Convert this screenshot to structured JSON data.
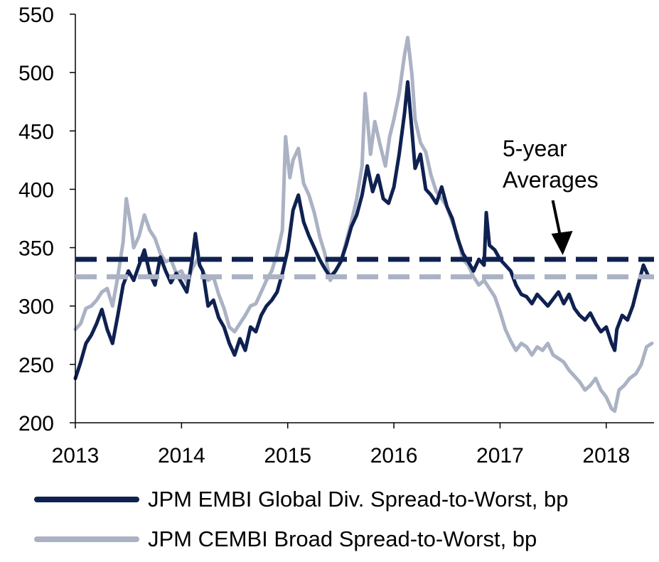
{
  "chart_data": {
    "type": "line",
    "xlabel": "",
    "ylabel": "",
    "xlim": [
      2013.0,
      2018.45
    ],
    "ylim": [
      200,
      550
    ],
    "y_ticks": [
      "200",
      "250",
      "300",
      "350",
      "400",
      "450",
      "500",
      "550"
    ],
    "x_ticks": [
      "2013",
      "2014",
      "2015",
      "2016",
      "2017",
      "2018"
    ],
    "grid": false,
    "legend_position": "bottom",
    "annotation": {
      "lines": [
        "5-year",
        "Averages"
      ],
      "points_to_x": 2017.55
    },
    "reference_lines": [
      {
        "series": "JPM EMBI Global Div. Spread-to-Worst, bp",
        "value": 340,
        "style": "dashed"
      },
      {
        "series": "JPM CEMBI Broad Spread-to-Worst, bp",
        "value": 325,
        "style": "dashed"
      }
    ],
    "series": [
      {
        "name": "JPM EMBI Global Div. Spread-to-Worst, bp",
        "color": "#0f2150",
        "points": [
          [
            2013.0,
            238
          ],
          [
            2013.05,
            252
          ],
          [
            2013.1,
            268
          ],
          [
            2013.15,
            275
          ],
          [
            2013.2,
            285
          ],
          [
            2013.25,
            297
          ],
          [
            2013.3,
            280
          ],
          [
            2013.35,
            268
          ],
          [
            2013.4,
            292
          ],
          [
            2013.45,
            318
          ],
          [
            2013.5,
            330
          ],
          [
            2013.55,
            322
          ],
          [
            2013.6,
            335
          ],
          [
            2013.65,
            348
          ],
          [
            2013.7,
            328
          ],
          [
            2013.75,
            318
          ],
          [
            2013.8,
            342
          ],
          [
            2013.85,
            330
          ],
          [
            2013.9,
            320
          ],
          [
            2013.95,
            328
          ],
          [
            2014.0,
            320
          ],
          [
            2014.05,
            312
          ],
          [
            2014.1,
            340
          ],
          [
            2014.13,
            362
          ],
          [
            2014.17,
            335
          ],
          [
            2014.2,
            330
          ],
          [
            2014.25,
            300
          ],
          [
            2014.3,
            305
          ],
          [
            2014.35,
            290
          ],
          [
            2014.4,
            282
          ],
          [
            2014.45,
            268
          ],
          [
            2014.5,
            258
          ],
          [
            2014.55,
            272
          ],
          [
            2014.6,
            262
          ],
          [
            2014.65,
            282
          ],
          [
            2014.7,
            278
          ],
          [
            2014.75,
            292
          ],
          [
            2014.8,
            300
          ],
          [
            2014.85,
            305
          ],
          [
            2014.9,
            312
          ],
          [
            2014.95,
            328
          ],
          [
            2015.0,
            348
          ],
          [
            2015.05,
            382
          ],
          [
            2015.1,
            395
          ],
          [
            2015.15,
            372
          ],
          [
            2015.2,
            360
          ],
          [
            2015.25,
            350
          ],
          [
            2015.3,
            340
          ],
          [
            2015.35,
            332
          ],
          [
            2015.4,
            325
          ],
          [
            2015.45,
            330
          ],
          [
            2015.5,
            338
          ],
          [
            2015.55,
            352
          ],
          [
            2015.6,
            368
          ],
          [
            2015.65,
            378
          ],
          [
            2015.7,
            395
          ],
          [
            2015.75,
            420
          ],
          [
            2015.8,
            398
          ],
          [
            2015.85,
            412
          ],
          [
            2015.9,
            392
          ],
          [
            2015.95,
            388
          ],
          [
            2016.0,
            402
          ],
          [
            2016.05,
            430
          ],
          [
            2016.1,
            465
          ],
          [
            2016.13,
            492
          ],
          [
            2016.17,
            450
          ],
          [
            2016.2,
            418
          ],
          [
            2016.25,
            430
          ],
          [
            2016.3,
            400
          ],
          [
            2016.35,
            395
          ],
          [
            2016.4,
            388
          ],
          [
            2016.45,
            402
          ],
          [
            2016.5,
            385
          ],
          [
            2016.55,
            375
          ],
          [
            2016.6,
            358
          ],
          [
            2016.65,
            345
          ],
          [
            2016.7,
            338
          ],
          [
            2016.75,
            330
          ],
          [
            2016.8,
            340
          ],
          [
            2016.85,
            335
          ],
          [
            2016.87,
            380
          ],
          [
            2016.9,
            352
          ],
          [
            2016.95,
            348
          ],
          [
            2017.0,
            340
          ],
          [
            2017.05,
            335
          ],
          [
            2017.1,
            330
          ],
          [
            2017.15,
            318
          ],
          [
            2017.2,
            310
          ],
          [
            2017.25,
            308
          ],
          [
            2017.3,
            302
          ],
          [
            2017.35,
            310
          ],
          [
            2017.4,
            305
          ],
          [
            2017.45,
            300
          ],
          [
            2017.5,
            306
          ],
          [
            2017.55,
            312
          ],
          [
            2017.6,
            302
          ],
          [
            2017.65,
            310
          ],
          [
            2017.7,
            298
          ],
          [
            2017.75,
            292
          ],
          [
            2017.8,
            288
          ],
          [
            2017.85,
            294
          ],
          [
            2017.9,
            285
          ],
          [
            2017.95,
            278
          ],
          [
            2018.0,
            282
          ],
          [
            2018.05,
            268
          ],
          [
            2018.08,
            262
          ],
          [
            2018.1,
            280
          ],
          [
            2018.15,
            292
          ],
          [
            2018.2,
            288
          ],
          [
            2018.25,
            300
          ],
          [
            2018.3,
            318
          ],
          [
            2018.35,
            335
          ],
          [
            2018.4,
            325
          ]
        ]
      },
      {
        "name": "JPM CEMBI Broad Spread-to-Worst, bp",
        "color": "#aab2c4",
        "points": [
          [
            2013.0,
            280
          ],
          [
            2013.05,
            285
          ],
          [
            2013.1,
            298
          ],
          [
            2013.15,
            300
          ],
          [
            2013.2,
            305
          ],
          [
            2013.25,
            312
          ],
          [
            2013.3,
            315
          ],
          [
            2013.35,
            300
          ],
          [
            2013.4,
            325
          ],
          [
            2013.45,
            355
          ],
          [
            2013.48,
            392
          ],
          [
            2013.52,
            370
          ],
          [
            2013.55,
            350
          ],
          [
            2013.6,
            360
          ],
          [
            2013.65,
            378
          ],
          [
            2013.7,
            365
          ],
          [
            2013.75,
            358
          ],
          [
            2013.8,
            345
          ],
          [
            2013.85,
            338
          ],
          [
            2013.9,
            340
          ],
          [
            2013.95,
            328
          ],
          [
            2014.0,
            330
          ],
          [
            2014.05,
            320
          ],
          [
            2014.1,
            332
          ],
          [
            2014.15,
            340
          ],
          [
            2014.2,
            330
          ],
          [
            2014.25,
            322
          ],
          [
            2014.3,
            325
          ],
          [
            2014.35,
            310
          ],
          [
            2014.4,
            298
          ],
          [
            2014.45,
            282
          ],
          [
            2014.5,
            278
          ],
          [
            2014.55,
            285
          ],
          [
            2014.6,
            292
          ],
          [
            2014.65,
            300
          ],
          [
            2014.7,
            302
          ],
          [
            2014.75,
            312
          ],
          [
            2014.8,
            322
          ],
          [
            2014.85,
            330
          ],
          [
            2014.9,
            345
          ],
          [
            2014.95,
            365
          ],
          [
            2014.98,
            445
          ],
          [
            2015.02,
            410
          ],
          [
            2015.05,
            425
          ],
          [
            2015.1,
            435
          ],
          [
            2015.15,
            405
          ],
          [
            2015.2,
            395
          ],
          [
            2015.25,
            380
          ],
          [
            2015.3,
            360
          ],
          [
            2015.35,
            345
          ],
          [
            2015.4,
            322
          ],
          [
            2015.45,
            330
          ],
          [
            2015.5,
            338
          ],
          [
            2015.55,
            355
          ],
          [
            2015.6,
            372
          ],
          [
            2015.65,
            392
          ],
          [
            2015.7,
            420
          ],
          [
            2015.73,
            482
          ],
          [
            2015.78,
            430
          ],
          [
            2015.82,
            458
          ],
          [
            2015.87,
            438
          ],
          [
            2015.92,
            420
          ],
          [
            2015.96,
            445
          ],
          [
            2016.0,
            460
          ],
          [
            2016.05,
            482
          ],
          [
            2016.1,
            515
          ],
          [
            2016.13,
            530
          ],
          [
            2016.17,
            498
          ],
          [
            2016.2,
            460
          ],
          [
            2016.25,
            440
          ],
          [
            2016.3,
            432
          ],
          [
            2016.35,
            412
          ],
          [
            2016.4,
            398
          ],
          [
            2016.45,
            392
          ],
          [
            2016.5,
            385
          ],
          [
            2016.55,
            372
          ],
          [
            2016.6,
            360
          ],
          [
            2016.65,
            340
          ],
          [
            2016.7,
            335
          ],
          [
            2016.75,
            325
          ],
          [
            2016.8,
            318
          ],
          [
            2016.85,
            322
          ],
          [
            2016.9,
            315
          ],
          [
            2016.95,
            308
          ],
          [
            2017.0,
            295
          ],
          [
            2017.05,
            280
          ],
          [
            2017.1,
            270
          ],
          [
            2017.15,
            262
          ],
          [
            2017.2,
            268
          ],
          [
            2017.25,
            265
          ],
          [
            2017.3,
            258
          ],
          [
            2017.35,
            265
          ],
          [
            2017.4,
            262
          ],
          [
            2017.45,
            268
          ],
          [
            2017.5,
            258
          ],
          [
            2017.55,
            255
          ],
          [
            2017.6,
            252
          ],
          [
            2017.65,
            245
          ],
          [
            2017.7,
            240
          ],
          [
            2017.75,
            235
          ],
          [
            2017.8,
            228
          ],
          [
            2017.85,
            232
          ],
          [
            2017.9,
            238
          ],
          [
            2017.95,
            228
          ],
          [
            2018.0,
            222
          ],
          [
            2018.05,
            212
          ],
          [
            2018.08,
            210
          ],
          [
            2018.12,
            228
          ],
          [
            2018.17,
            232
          ],
          [
            2018.22,
            238
          ],
          [
            2018.28,
            242
          ],
          [
            2018.33,
            250
          ],
          [
            2018.38,
            265
          ],
          [
            2018.43,
            268
          ]
        ]
      }
    ]
  },
  "legend": {
    "items": [
      {
        "label": "JPM EMBI Global Div. Spread-to-Worst, bp",
        "color": "#0f2150"
      },
      {
        "label": "JPM CEMBI Broad Spread-to-Worst, bp",
        "color": "#aab2c4"
      }
    ]
  }
}
